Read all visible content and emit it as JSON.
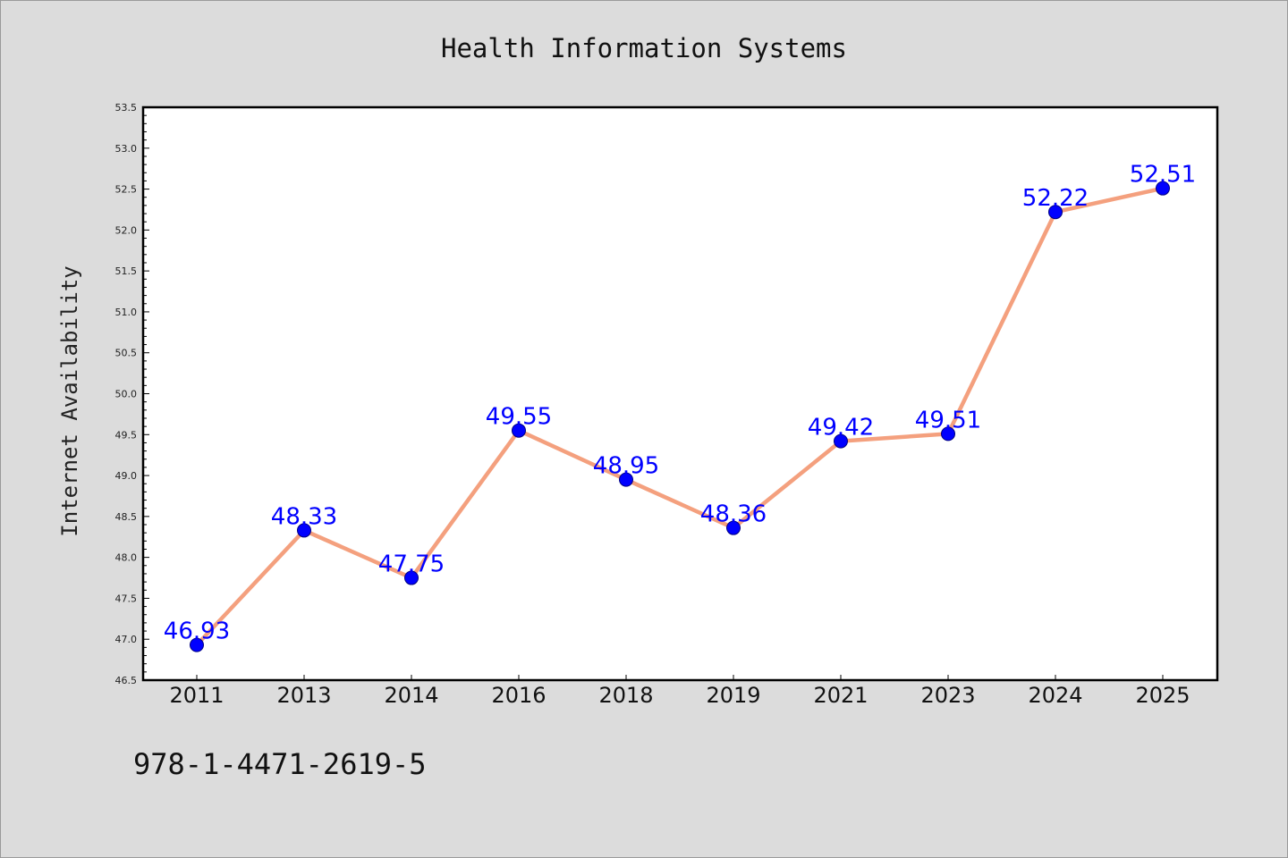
{
  "chart_data": {
    "type": "line",
    "title": "Health Information Systems",
    "xlabel": "",
    "ylabel": "Internet Availability",
    "categories": [
      "2011",
      "2013",
      "2014",
      "2016",
      "2018",
      "2019",
      "2021",
      "2023",
      "2024",
      "2025"
    ],
    "series": [
      {
        "values": [
          46.93,
          48.33,
          47.75,
          49.55,
          48.95,
          48.36,
          49.42,
          49.51,
          52.22,
          52.51
        ],
        "labels": [
          "46.93",
          "48.33",
          "47.75",
          "49.55",
          "48.95",
          "48.36",
          "49.42",
          "49.51",
          "52.22",
          "52.51"
        ]
      }
    ],
    "ylim": [
      46.5,
      53.5
    ],
    "yticks": [
      46.5,
      47.0,
      47.5,
      48.0,
      48.5,
      49.0,
      49.5,
      50.0,
      50.5,
      51.0,
      51.5,
      52.0,
      52.5,
      53.0,
      53.5
    ],
    "ytick_labels": [
      "46.5",
      "47.0",
      "47.5",
      "48.0",
      "48.5",
      "49.0",
      "49.5",
      "50.0",
      "50.5",
      "51.0",
      "51.5",
      "52.0",
      "52.5",
      "53.0",
      "53.5"
    ],
    "grid": false,
    "colors": {
      "line": "#f4a07e",
      "marker": "#0000ff",
      "marker_edge": "#000080",
      "data_label": "#0000ff",
      "background": "#dcdcdc",
      "plot_background": "#ffffff"
    }
  },
  "footnote": "978-1-4471-2619-5"
}
